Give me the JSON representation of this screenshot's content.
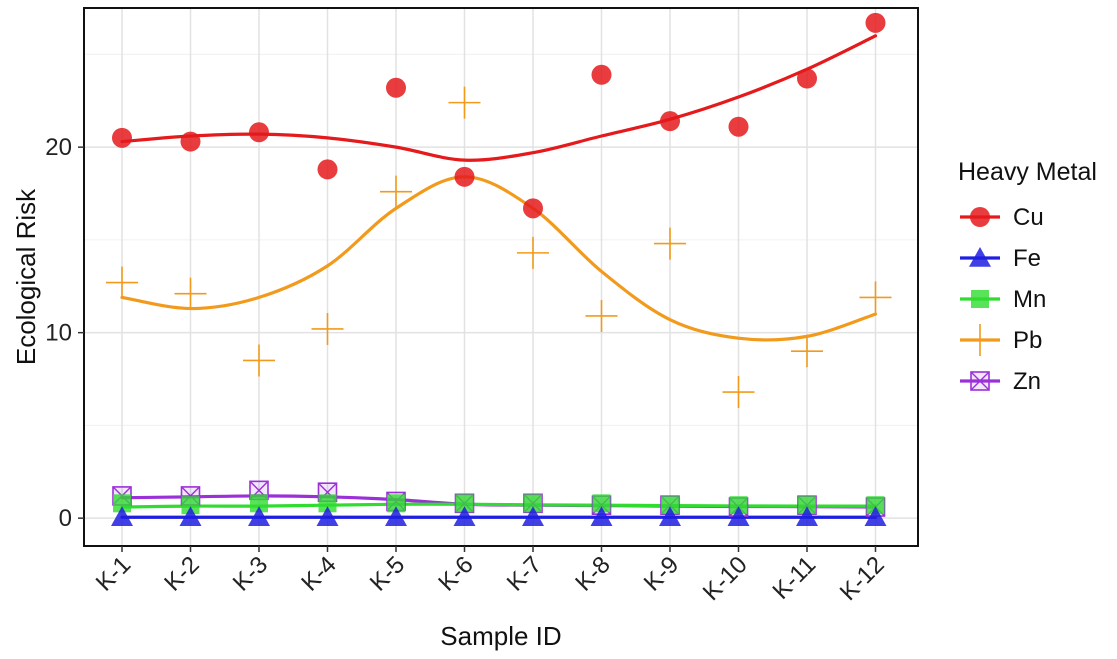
{
  "chart_data": {
    "type": "scatter",
    "xlabel": "Sample ID",
    "ylabel": "Ecological Risk",
    "categories": [
      "K-1",
      "K-2",
      "K-3",
      "K-4",
      "K-5",
      "K-6",
      "K-7",
      "K-8",
      "K-9",
      "K-10",
      "K-11",
      "K-12"
    ],
    "ylim": [
      -1.5,
      27.5
    ],
    "yticks": [
      0,
      10,
      20
    ],
    "grid": true,
    "legend_title": "Heavy Metal",
    "legend_position": "right",
    "trend_lines": "smoothed",
    "series": [
      {
        "name": "Cu",
        "color": "#e41a1c",
        "marker": "circle",
        "values": [
          20.5,
          20.3,
          20.8,
          18.8,
          23.2,
          18.4,
          16.7,
          23.9,
          21.4,
          21.1,
          23.7,
          26.7
        ],
        "trend": [
          20.3,
          20.6,
          20.7,
          20.5,
          20.0,
          19.3,
          19.7,
          20.6,
          21.5,
          22.7,
          24.2,
          26.0
        ]
      },
      {
        "name": "Fe",
        "color": "#1f1fe0",
        "marker": "triangle",
        "values": [
          0.05,
          0.05,
          0.05,
          0.05,
          0.05,
          0.05,
          0.05,
          0.05,
          0.05,
          0.05,
          0.05,
          0.05
        ],
        "trend": [
          0.05,
          0.05,
          0.05,
          0.05,
          0.05,
          0.05,
          0.05,
          0.05,
          0.05,
          0.05,
          0.05,
          0.05
        ]
      },
      {
        "name": "Mn",
        "color": "#2fdc2f",
        "marker": "square",
        "values": [
          0.8,
          0.7,
          0.8,
          0.8,
          0.8,
          0.8,
          0.8,
          0.8,
          0.7,
          0.7,
          0.7,
          0.7
        ],
        "trend": [
          0.6,
          0.65,
          0.65,
          0.7,
          0.75,
          0.75,
          0.72,
          0.7,
          0.68,
          0.66,
          0.65,
          0.65
        ]
      },
      {
        "name": "Pb",
        "color": "#f29a1c",
        "marker": "plus",
        "values": [
          12.7,
          12.1,
          8.5,
          10.2,
          17.6,
          22.4,
          14.3,
          10.9,
          14.8,
          6.8,
          9.0,
          11.9
        ],
        "trend": [
          11.9,
          11.3,
          11.9,
          13.6,
          16.7,
          18.4,
          16.7,
          13.3,
          10.7,
          9.7,
          9.8,
          11.0
        ]
      },
      {
        "name": "Zn",
        "color": "#9b30d9",
        "marker": "square-x",
        "values": [
          1.2,
          1.2,
          1.5,
          1.4,
          0.9,
          0.8,
          0.8,
          0.7,
          0.7,
          0.6,
          0.7,
          0.6
        ],
        "trend": [
          1.1,
          1.15,
          1.2,
          1.15,
          1.0,
          0.75,
          0.7,
          0.68,
          0.65,
          0.63,
          0.62,
          0.6
        ]
      }
    ]
  }
}
